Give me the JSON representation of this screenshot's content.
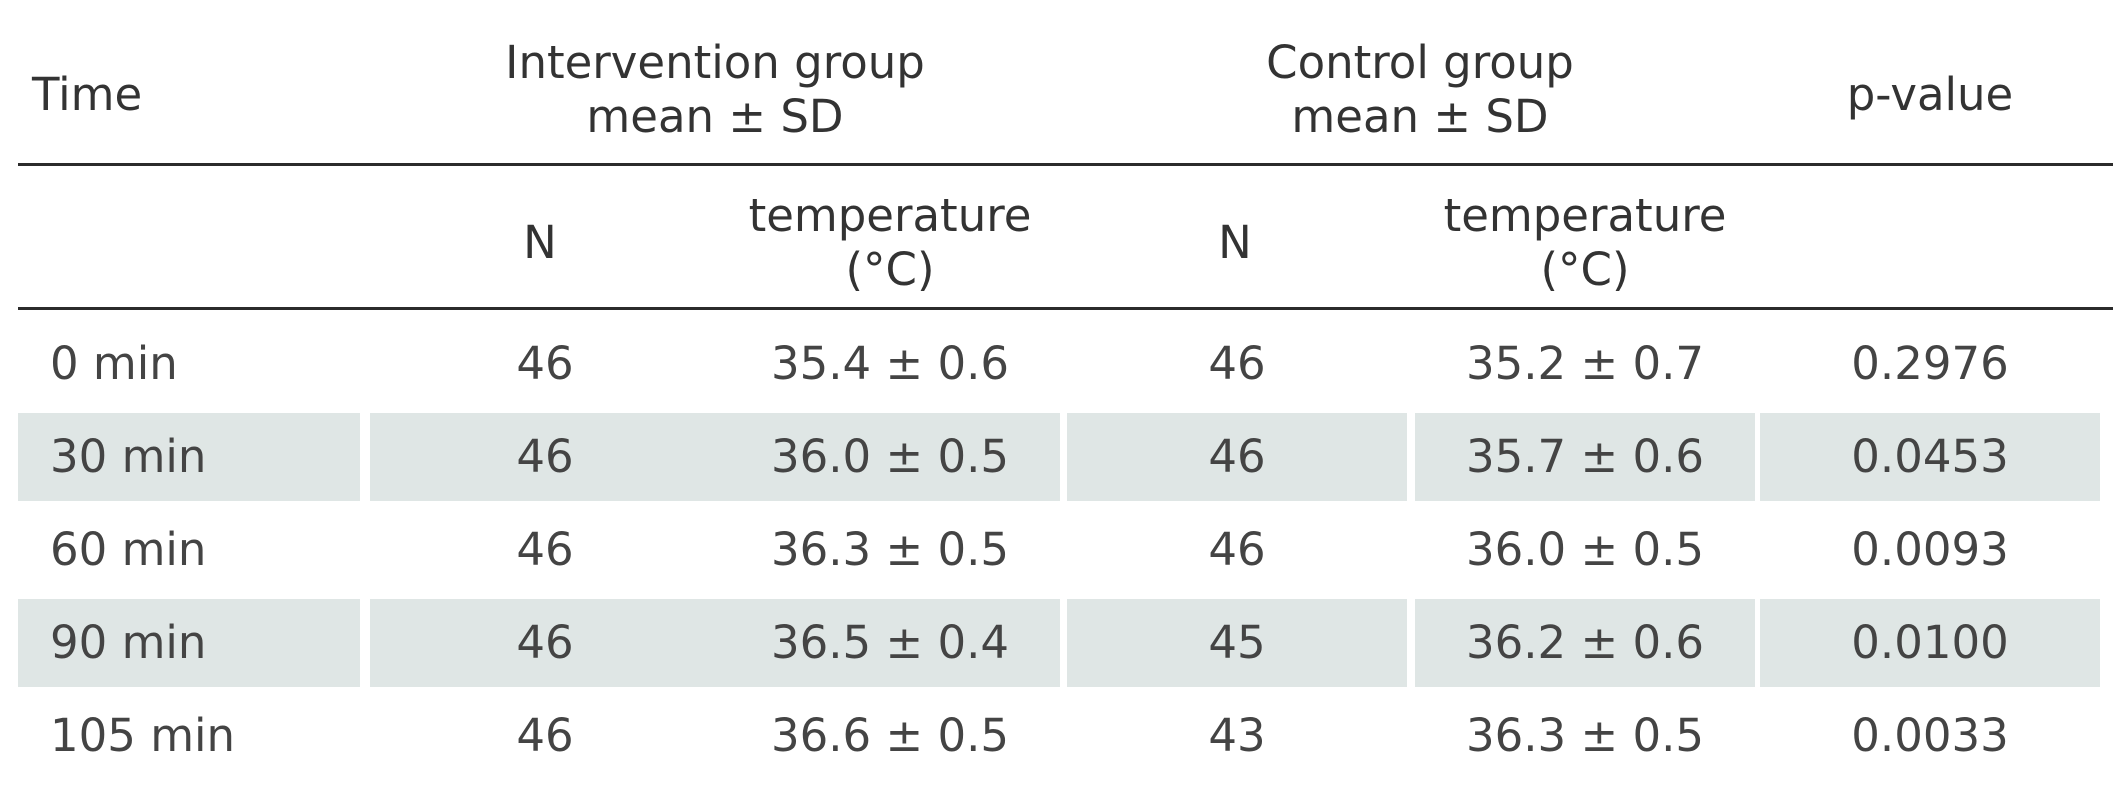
{
  "chart_data": {
    "type": "table",
    "header": {
      "time": "Time",
      "intervention_group": "Intervention group",
      "intervention_stat": "mean ± SD",
      "control_group": "Control group",
      "control_stat": "mean ± SD",
      "pvalue": "p-value"
    },
    "subheader": {
      "int_n": "N",
      "int_temp_1": "temperature",
      "int_temp_2": "(°C)",
      "ctl_n": "N",
      "ctl_temp_1": "temperature",
      "ctl_temp_2": "(°C)"
    },
    "rows": [
      {
        "time": "0 min",
        "int_n": "46",
        "int_temp": "35.4 ± 0.6",
        "ctl_n": "46",
        "ctl_temp": "35.2 ± 0.7",
        "p": "0.2976"
      },
      {
        "time": "30 min",
        "int_n": "46",
        "int_temp": "36.0 ± 0.5",
        "ctl_n": "46",
        "ctl_temp": "35.7 ± 0.6",
        "p": "0.0453"
      },
      {
        "time": "60 min",
        "int_n": "46",
        "int_temp": "36.3 ± 0.5",
        "ctl_n": "46",
        "ctl_temp": "36.0 ± 0.5",
        "p": "0.0093"
      },
      {
        "time": "90 min",
        "int_n": "46",
        "int_temp": "36.5 ± 0.4",
        "ctl_n": "45",
        "ctl_temp": "36.2 ± 0.6",
        "p": "0.0100"
      },
      {
        "time": "105 min",
        "int_n": "46",
        "int_temp": "36.6 ± 0.5",
        "ctl_n": "43",
        "ctl_temp": "36.3 ± 0.5",
        "p": "0.0033"
      }
    ],
    "shaded_rows": [
      1,
      3
    ],
    "colors": {
      "shade": "#dfe6e5",
      "rule": "#2b2b2b",
      "text": "#3a3a3a"
    }
  }
}
